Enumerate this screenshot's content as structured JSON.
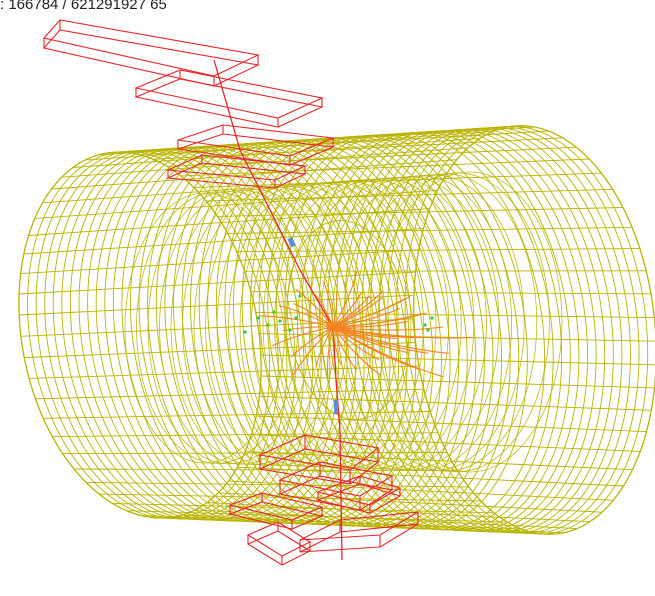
{
  "event_label": ": 166784 / 621291927 65",
  "colors": {
    "barrel_wireframe": "#b9b400",
    "muon_chambers": "#e8262a",
    "muon_track": "#e8262a",
    "tracks": "#f5821f",
    "hits_green": "#2ecc40",
    "calo_deposits_blue": "#5b8fd8"
  },
  "legend": []
}
